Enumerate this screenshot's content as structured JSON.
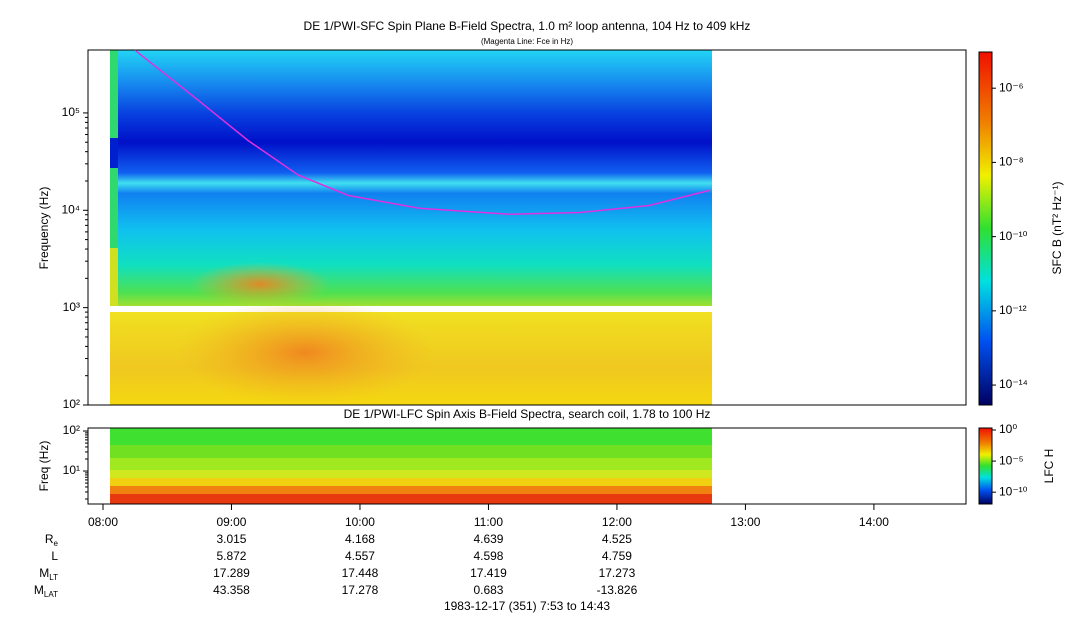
{
  "chart_data": [
    {
      "type": "spectrogram",
      "title": "DE 1/PWI-SFC  Spin Plane B-Field Spectra, 1.0 m² loop antenna, 104 Hz to 409 kHz",
      "subtitle": "(Magenta Line: Fce in Hz)",
      "y_label": "Frequency (Hz)",
      "y_scale": "log",
      "ylim": [
        100,
        443000
      ],
      "yticks": [
        {
          "value": 100,
          "label": "10²"
        },
        {
          "value": 1000,
          "label": "10³"
        },
        {
          "value": 10000,
          "label": "10⁴"
        },
        {
          "value": 100000,
          "label": "10⁵"
        }
      ],
      "xlim": [
        7.8833,
        14.7167
      ],
      "fce_line": {
        "color": "#e030e0",
        "x": [
          8.25,
          8.74,
          9.13,
          9.52,
          9.91,
          10.46,
          11.16,
          11.71,
          12.25,
          12.72
        ],
        "values": [
          440000,
          135000,
          52000,
          23000,
          14200,
          10500,
          9100,
          9500,
          11200,
          16000
        ]
      },
      "colorbar": {
        "label": "SFC B (nT² Hz⁻¹)",
        "scale": "log",
        "lim": [
          2.9e-15,
          1.07e-05
        ],
        "ticks": [
          {
            "value": 1e-14,
            "label": "10⁻¹⁴"
          },
          {
            "value": 1e-12,
            "label": "10⁻¹²"
          },
          {
            "value": 1e-10,
            "label": "10⁻¹⁰"
          },
          {
            "value": 1e-08,
            "label": "10⁻⁸"
          },
          {
            "value": 1e-06,
            "label": "10⁻⁶"
          }
        ]
      }
    },
    {
      "type": "spectrogram",
      "title": "DE 1/PWI-LFC  Spin Axis B-Field Spectra, search coil, 1.78 to 100 Hz",
      "y_label": "Freq (Hz)",
      "y_scale": "log",
      "ylim": [
        1.5,
        119
      ],
      "yticks": [
        {
          "value": 10,
          "label": "10¹"
        },
        {
          "value": 100,
          "label": "10²"
        }
      ],
      "xlim": [
        7.8833,
        14.7167
      ],
      "xticks": [
        {
          "value": 8,
          "label": "08:00"
        },
        {
          "value": 9,
          "label": "09:00"
        },
        {
          "value": 10,
          "label": "10:00"
        },
        {
          "value": 11,
          "label": "11:00"
        },
        {
          "value": 12,
          "label": "12:00"
        },
        {
          "value": 13,
          "label": "13:00"
        },
        {
          "value": 14,
          "label": "14:00"
        }
      ],
      "colorbar": {
        "label": "LFC H",
        "scale": "log",
        "lim": [
          1.26e-12,
          2.1
        ],
        "ticks": [
          {
            "value": 1e-10,
            "label": "10⁻¹⁰"
          },
          {
            "value": 1e-05,
            "label": "10⁻⁵"
          },
          {
            "value": 1,
            "label": "10⁰"
          }
        ]
      }
    }
  ],
  "ephemeris": {
    "rows": [
      {
        "label": {
          "main": "R",
          "sub": "e"
        },
        "values": [
          3.015,
          4.168,
          4.639,
          4.525
        ]
      },
      {
        "label": {
          "main": "L"
        },
        "values": [
          5.872,
          4.557,
          4.598,
          4.759
        ]
      },
      {
        "label": {
          "main": "M",
          "sub": "LT"
        },
        "values": [
          17.289,
          17.448,
          17.419,
          17.273
        ]
      },
      {
        "label": {
          "main": "M",
          "sub": "LAT"
        },
        "values": [
          43.358,
          17.278,
          0.683,
          -13.826
        ]
      }
    ]
  },
  "footer": "1983-12-17 (351) 7:53 to 14:43"
}
